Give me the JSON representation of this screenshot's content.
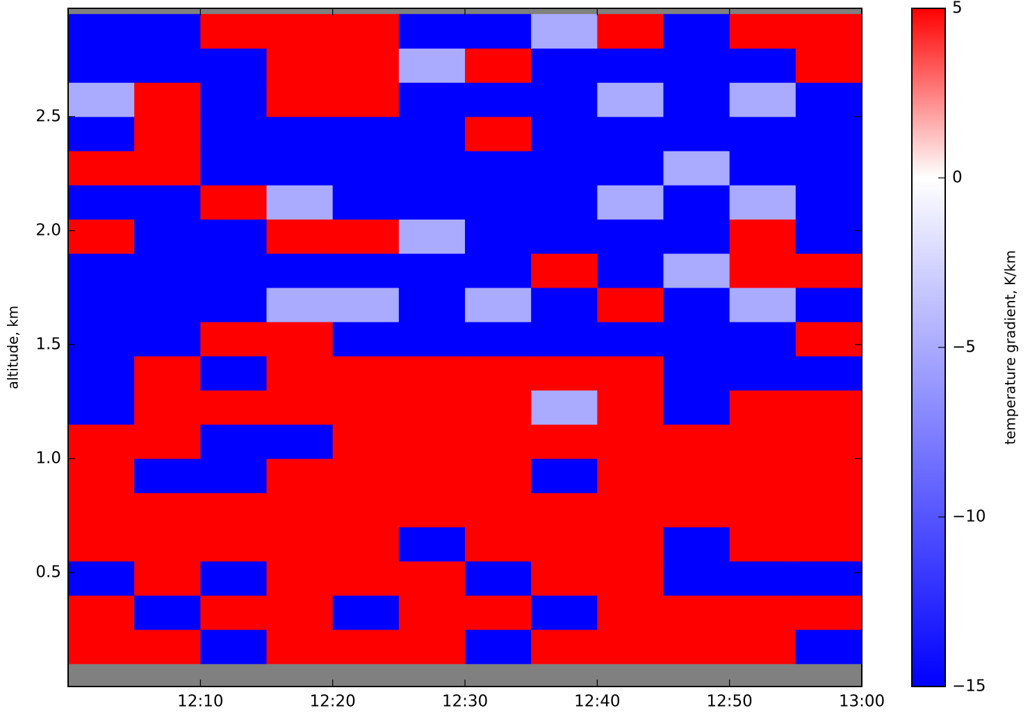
{
  "chart_data": {
    "type": "heatmap",
    "y_label": "altitude, km",
    "colorbar_label": "temperature gradient, K/km",
    "x_edges": [
      0,
      5,
      10,
      15,
      20,
      25,
      30,
      35,
      40,
      45,
      50,
      55,
      60
    ],
    "y_edges": [
      0.1,
      0.25,
      0.4,
      0.55,
      0.7,
      0.85,
      1.0,
      1.15,
      1.3,
      1.45,
      1.6,
      1.75,
      1.9,
      2.05,
      2.2,
      2.35,
      2.5,
      2.65,
      2.8,
      2.95
    ],
    "z": [
      [
        5,
        5,
        -15,
        5,
        5,
        5,
        -15,
        5,
        5,
        5,
        5,
        -15
      ],
      [
        5,
        -15,
        5,
        5,
        -15,
        5,
        5,
        -15,
        5,
        5,
        5,
        5
      ],
      [
        -15,
        5,
        -15,
        5,
        5,
        5,
        -15,
        5,
        5,
        -15,
        -15,
        -15
      ],
      [
        5,
        5,
        5,
        5,
        5,
        -15,
        5,
        5,
        5,
        -15,
        5,
        5
      ],
      [
        5,
        5,
        5,
        5,
        5,
        5,
        5,
        5,
        5,
        5,
        5,
        5
      ],
      [
        5,
        -15,
        -15,
        5,
        5,
        5,
        5,
        -15,
        5,
        5,
        5,
        5
      ],
      [
        5,
        5,
        -15,
        -15,
        5,
        5,
        5,
        5,
        5,
        5,
        5,
        5
      ],
      [
        -15,
        5,
        5,
        5,
        5,
        5,
        5,
        -5,
        5,
        -15,
        5,
        5
      ],
      [
        -15,
        5,
        -15,
        5,
        5,
        5,
        5,
        5,
        5,
        -15,
        -15,
        -15
      ],
      [
        -15,
        -15,
        5,
        5,
        -15,
        -15,
        -15,
        -15,
        -15,
        -15,
        -15,
        5
      ],
      [
        -15,
        -15,
        -15,
        -5,
        -5,
        -15,
        -5,
        -15,
        5,
        -15,
        -5,
        -15
      ],
      [
        -15,
        -15,
        -15,
        -15,
        -15,
        -15,
        -15,
        5,
        -15,
        -5,
        5,
        5
      ],
      [
        5,
        -15,
        -15,
        5,
        5,
        -5,
        -15,
        -15,
        -15,
        -15,
        5,
        -15
      ],
      [
        -15,
        -15,
        5,
        -5,
        -15,
        -15,
        -15,
        -15,
        -5,
        -15,
        -5,
        -15
      ],
      [
        5,
        5,
        -15,
        -15,
        -15,
        -15,
        -15,
        -15,
        -15,
        -5,
        -15,
        -15
      ],
      [
        -15,
        5,
        -15,
        -15,
        -15,
        -15,
        5,
        -15,
        -15,
        -15,
        -15,
        -15
      ],
      [
        -5,
        5,
        -15,
        5,
        5,
        -15,
        -15,
        -15,
        -5,
        -15,
        -5,
        -15
      ],
      [
        -15,
        -15,
        -15,
        5,
        5,
        -5,
        5,
        -15,
        -15,
        -15,
        -15,
        5
      ],
      [
        -15,
        -15,
        5,
        5,
        5,
        -15,
        -15,
        -5,
        5,
        -15,
        5,
        5
      ]
    ],
    "xlim": [
      0,
      60
    ],
    "xticks": [
      {
        "value": 10,
        "label": "12:10"
      },
      {
        "value": 20,
        "label": "12:20"
      },
      {
        "value": 30,
        "label": "12:30"
      },
      {
        "value": 40,
        "label": "12:40"
      },
      {
        "value": 50,
        "label": "12:50"
      },
      {
        "value": 60,
        "label": "13:00"
      }
    ],
    "ylim": [
      0,
      2.975
    ],
    "yticks": [
      0.5,
      {
        "value": 1.0,
        "label": "1.0"
      },
      1.5,
      {
        "value": 2.0,
        "label": "2.0"
      },
      2.5
    ],
    "clim": [
      -15,
      5
    ],
    "cticks": [
      {
        "value": -15,
        "label": "−15"
      },
      {
        "value": -10,
        "label": "−10"
      },
      {
        "value": -5,
        "label": "−5"
      },
      0,
      5
    ],
    "cmap": {
      "colors": [
        "#0000ff",
        "#ffffff",
        "#ff0000"
      ],
      "center": 0
    },
    "background": "#808080"
  }
}
